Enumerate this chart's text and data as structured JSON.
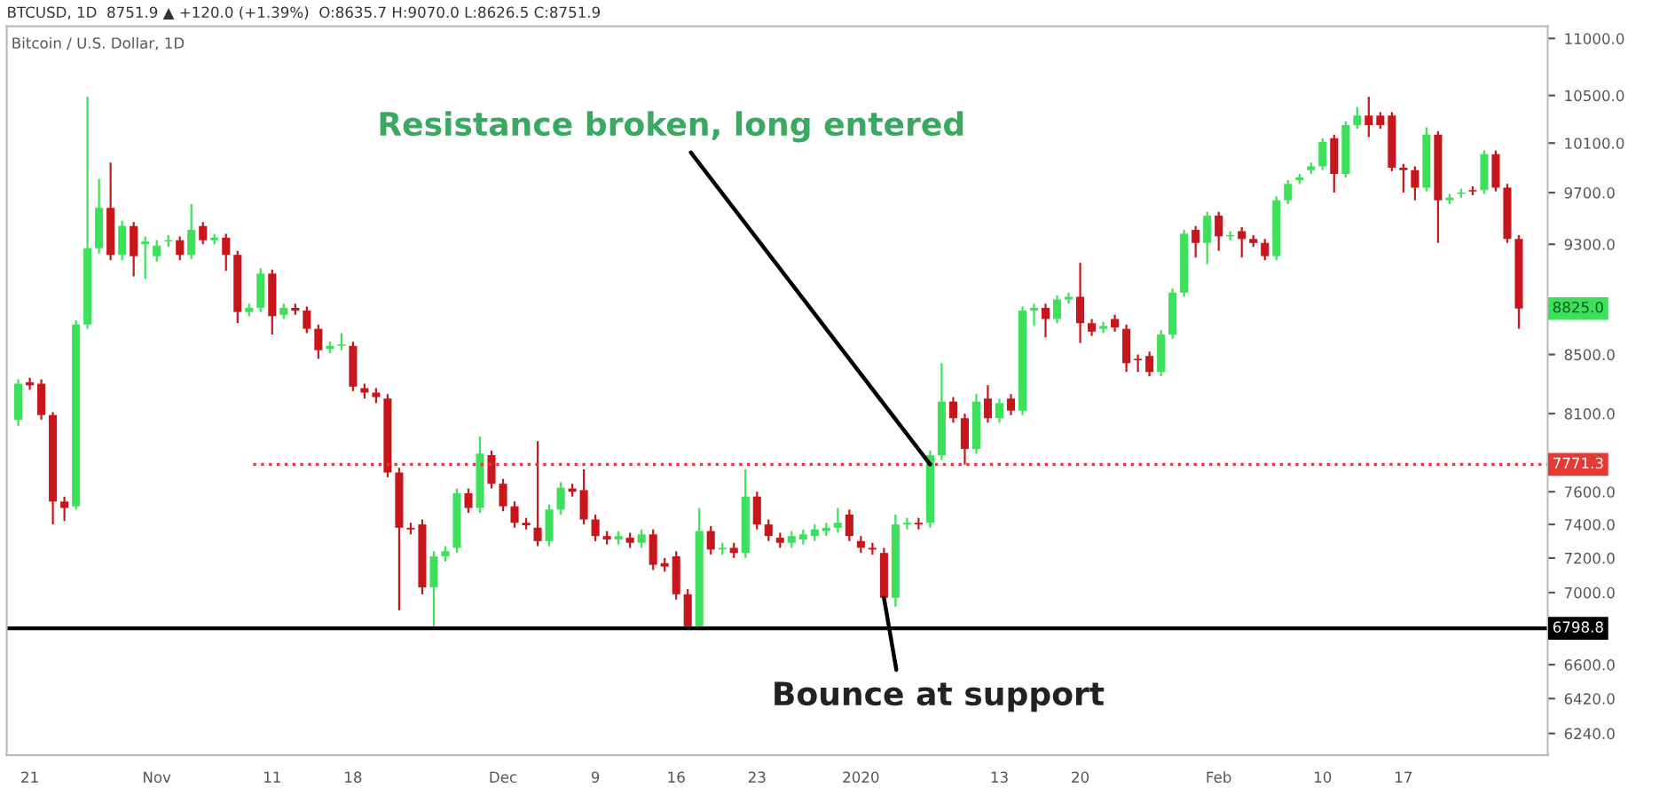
{
  "chart_data": {
    "type": "candlestick",
    "title": "BTCUSD, 1D  8751.9 ▲ +120.0 (+1.39%)  O:8635.7 H:9070.0 L:8626.5 C:8751.9",
    "subtitle": "Bitcoin / U.S. Dollar, 1D",
    "x": [
      "2019-10-20",
      "2019-10-21",
      "2019-10-22",
      "2019-10-23",
      "2019-10-24",
      "2019-10-25",
      "2019-10-26",
      "2019-10-27",
      "2019-10-28",
      "2019-10-29",
      "2019-10-30",
      "2019-10-31",
      "2019-11-01",
      "2019-11-02",
      "2019-11-03",
      "2019-11-04",
      "2019-11-05",
      "2019-11-06",
      "2019-11-07",
      "2019-11-08",
      "2019-11-09",
      "2019-11-10",
      "2019-11-11",
      "2019-11-12",
      "2019-11-13",
      "2019-11-14",
      "2019-11-15",
      "2019-11-16",
      "2019-11-17",
      "2019-11-18",
      "2019-11-19",
      "2019-11-20",
      "2019-11-21",
      "2019-11-22",
      "2019-11-23",
      "2019-11-24",
      "2019-11-25",
      "2019-11-26",
      "2019-11-27",
      "2019-11-28",
      "2019-11-29",
      "2019-11-30",
      "2019-12-01",
      "2019-12-02",
      "2019-12-03",
      "2019-12-04",
      "2019-12-05",
      "2019-12-06",
      "2019-12-07",
      "2019-12-08",
      "2019-12-09",
      "2019-12-10",
      "2019-12-11",
      "2019-12-12",
      "2019-12-13",
      "2019-12-14",
      "2019-12-15",
      "2019-12-16",
      "2019-12-17",
      "2019-12-18",
      "2019-12-19",
      "2019-12-20",
      "2019-12-21",
      "2019-12-22",
      "2019-12-23",
      "2019-12-24",
      "2019-12-25",
      "2019-12-26",
      "2019-12-27",
      "2019-12-28",
      "2019-12-29",
      "2019-12-30",
      "2019-12-31",
      "2020-01-01",
      "2020-01-02",
      "2020-01-03",
      "2020-01-04",
      "2020-01-05",
      "2020-01-06",
      "2020-01-07",
      "2020-01-08",
      "2020-01-09",
      "2020-01-10",
      "2020-01-11",
      "2020-01-12",
      "2020-01-13",
      "2020-01-14",
      "2020-01-15",
      "2020-01-16",
      "2020-01-17",
      "2020-01-18",
      "2020-01-19",
      "2020-01-20",
      "2020-01-21",
      "2020-01-22",
      "2020-01-23",
      "2020-01-24",
      "2020-01-25",
      "2020-01-26",
      "2020-01-27",
      "2020-01-28",
      "2020-01-29",
      "2020-01-30",
      "2020-01-31",
      "2020-02-01",
      "2020-02-02",
      "2020-02-03",
      "2020-02-04",
      "2020-02-05",
      "2020-02-06",
      "2020-02-07",
      "2020-02-08",
      "2020-02-09",
      "2020-02-10",
      "2020-02-11",
      "2020-02-12",
      "2020-02-13",
      "2020-02-14",
      "2020-02-15",
      "2020-02-16",
      "2020-02-17",
      "2020-02-18",
      "2020-02-19",
      "2020-02-20",
      "2020-02-21",
      "2020-02-22",
      "2020-02-23",
      "2020-02-24",
      "2020-02-25",
      "2020-02-26",
      "2020-02-27"
    ],
    "ohlc": [
      [
        8060,
        8330,
        8020,
        8300
      ],
      [
        8310,
        8340,
        8260,
        8290
      ],
      [
        8300,
        8330,
        8060,
        8090
      ],
      [
        8090,
        8110,
        7400,
        7540
      ],
      [
        7540,
        7570,
        7420,
        7500
      ],
      [
        7510,
        8740,
        7490,
        8710
      ],
      [
        8710,
        10490,
        8680,
        9270
      ],
      [
        9270,
        9810,
        9230,
        9580
      ],
      [
        9580,
        9940,
        9180,
        9220
      ],
      [
        9220,
        9480,
        9180,
        9440
      ],
      [
        9440,
        9470,
        9060,
        9210
      ],
      [
        9300,
        9360,
        9040,
        9320
      ],
      [
        9210,
        9330,
        9170,
        9290
      ],
      [
        9320,
        9370,
        9280,
        9330
      ],
      [
        9330,
        9360,
        9180,
        9220
      ],
      [
        9220,
        9610,
        9190,
        9410
      ],
      [
        9440,
        9470,
        9300,
        9330
      ],
      [
        9330,
        9380,
        9300,
        9350
      ],
      [
        9350,
        9380,
        9100,
        9220
      ],
      [
        9220,
        9250,
        8720,
        8800
      ],
      [
        8800,
        8860,
        8770,
        8830
      ],
      [
        8830,
        9120,
        8800,
        9080
      ],
      [
        9080,
        9110,
        8640,
        8770
      ],
      [
        8780,
        8860,
        8750,
        8830
      ],
      [
        8830,
        8860,
        8780,
        8810
      ],
      [
        8810,
        8840,
        8650,
        8680
      ],
      [
        8680,
        8710,
        8470,
        8530
      ],
      [
        8540,
        8590,
        8510,
        8560
      ],
      [
        8560,
        8650,
        8530,
        8570
      ],
      [
        8560,
        8590,
        8250,
        8280
      ],
      [
        8270,
        8300,
        8200,
        8240
      ],
      [
        8240,
        8270,
        8170,
        8210
      ],
      [
        8200,
        8230,
        7690,
        7720
      ],
      [
        7720,
        7750,
        6900,
        7380
      ],
      [
        7380,
        7410,
        7340,
        7370
      ],
      [
        7400,
        7430,
        6990,
        7030
      ],
      [
        7030,
        7240,
        6810,
        7210
      ],
      [
        7210,
        7270,
        7180,
        7240
      ],
      [
        7260,
        7620,
        7230,
        7590
      ],
      [
        7590,
        7620,
        7470,
        7500
      ],
      [
        7500,
        7950,
        7470,
        7840
      ],
      [
        7830,
        7860,
        7620,
        7650
      ],
      [
        7650,
        7680,
        7480,
        7510
      ],
      [
        7510,
        7540,
        7380,
        7410
      ],
      [
        7410,
        7440,
        7370,
        7395
      ],
      [
        7380,
        7920,
        7270,
        7300
      ],
      [
        7300,
        7520,
        7270,
        7490
      ],
      [
        7490,
        7660,
        7460,
        7625
      ],
      [
        7620,
        7650,
        7570,
        7600
      ],
      [
        7610,
        7740,
        7400,
        7430
      ],
      [
        7430,
        7460,
        7300,
        7330
      ],
      [
        7330,
        7360,
        7280,
        7310
      ],
      [
        7310,
        7360,
        7280,
        7330
      ],
      [
        7320,
        7350,
        7260,
        7290
      ],
      [
        7290,
        7370,
        7260,
        7340
      ],
      [
        7340,
        7370,
        7130,
        7160
      ],
      [
        7170,
        7200,
        7120,
        7150
      ],
      [
        7210,
        7240,
        6960,
        6990
      ],
      [
        6990,
        7020,
        6790,
        6810
      ],
      [
        6810,
        7500,
        6790,
        7360
      ],
      [
        7360,
        7390,
        7220,
        7250
      ],
      [
        7250,
        7290,
        7220,
        7260
      ],
      [
        7260,
        7290,
        7200,
        7230
      ],
      [
        7230,
        7740,
        7200,
        7570
      ],
      [
        7570,
        7600,
        7370,
        7400
      ],
      [
        7400,
        7430,
        7300,
        7330
      ],
      [
        7320,
        7350,
        7260,
        7290
      ],
      [
        7290,
        7360,
        7260,
        7330
      ],
      [
        7310,
        7370,
        7280,
        7340
      ],
      [
        7330,
        7400,
        7300,
        7370
      ],
      [
        7360,
        7410,
        7330,
        7380
      ],
      [
        7380,
        7500,
        7350,
        7410
      ],
      [
        7460,
        7490,
        7300,
        7330
      ],
      [
        7300,
        7330,
        7230,
        7260
      ],
      [
        7260,
        7290,
        7220,
        7250
      ],
      [
        7230,
        7260,
        6940,
        6970
      ],
      [
        6970,
        7460,
        6920,
        7400
      ],
      [
        7400,
        7440,
        7370,
        7410
      ],
      [
        7410,
        7440,
        7370,
        7400
      ],
      [
        7410,
        7860,
        7380,
        7830
      ],
      [
        7830,
        8440,
        7800,
        8180
      ],
      [
        8180,
        8210,
        8040,
        8070
      ],
      [
        8070,
        8100,
        7770,
        7870
      ],
      [
        7870,
        8230,
        7840,
        8180
      ],
      [
        8200,
        8290,
        8040,
        8070
      ],
      [
        8070,
        8200,
        8040,
        8170
      ],
      [
        8200,
        8230,
        8090,
        8120
      ],
      [
        8120,
        8840,
        8090,
        8810
      ],
      [
        8810,
        8860,
        8700,
        8830
      ],
      [
        8830,
        8860,
        8620,
        8750
      ],
      [
        8750,
        8920,
        8720,
        8890
      ],
      [
        8890,
        8940,
        8860,
        8910
      ],
      [
        8910,
        9160,
        8580,
        8720
      ],
      [
        8720,
        8750,
        8630,
        8660
      ],
      [
        8680,
        8730,
        8650,
        8700
      ],
      [
        8750,
        8780,
        8660,
        8690
      ],
      [
        8680,
        8710,
        8380,
        8440
      ],
      [
        8470,
        8500,
        8380,
        8460
      ],
      [
        8490,
        8520,
        8350,
        8380
      ],
      [
        8380,
        8670,
        8350,
        8640
      ],
      [
        8640,
        8970,
        8610,
        8940
      ],
      [
        8940,
        9410,
        8910,
        9380
      ],
      [
        9410,
        9440,
        9200,
        9310
      ],
      [
        9310,
        9550,
        9150,
        9520
      ],
      [
        9520,
        9550,
        9250,
        9360
      ],
      [
        9360,
        9400,
        9330,
        9370
      ],
      [
        9400,
        9430,
        9200,
        9340
      ],
      [
        9340,
        9370,
        9280,
        9310
      ],
      [
        9310,
        9340,
        9180,
        9210
      ],
      [
        9210,
        9670,
        9180,
        9640
      ],
      [
        9640,
        9800,
        9610,
        9770
      ],
      [
        9800,
        9850,
        9770,
        9820
      ],
      [
        9880,
        9940,
        9850,
        9910
      ],
      [
        9910,
        10140,
        9880,
        10110
      ],
      [
        10140,
        10170,
        9700,
        9850
      ],
      [
        9850,
        10280,
        9820,
        10250
      ],
      [
        10250,
        10400,
        10220,
        10330
      ],
      [
        10330,
        10490,
        10150,
        10250
      ],
      [
        10330,
        10360,
        10220,
        10250
      ],
      [
        10330,
        10360,
        9870,
        9900
      ],
      [
        9900,
        9930,
        9700,
        9880
      ],
      [
        9880,
        9910,
        9640,
        9740
      ],
      [
        9740,
        10230,
        9710,
        10170
      ],
      [
        10170,
        10200,
        9310,
        9640
      ],
      [
        9640,
        9690,
        9610,
        9660
      ],
      [
        9690,
        9730,
        9660,
        9700
      ],
      [
        9720,
        9750,
        9680,
        9710
      ],
      [
        9720,
        10040,
        9690,
        10010
      ],
      [
        10010,
        10040,
        9710,
        9740
      ],
      [
        9740,
        9770,
        9310,
        9340
      ],
      [
        9340,
        9370,
        8680,
        8825.0
      ]
    ],
    "colors": [
      "#3ee05b",
      "#c8161d",
      "#c8161d",
      "#c8161d",
      "#c8161d",
      "#3ee05b",
      "#3ee05b",
      "#3ee05b",
      "#c8161d",
      "#3ee05b",
      "#c8161d",
      "#3ee05b",
      "#3ee05b",
      "#3ee05b",
      "#c8161d",
      "#3ee05b",
      "#c8161d",
      "#3ee05b",
      "#c8161d",
      "#c8161d",
      "#3ee05b",
      "#3ee05b",
      "#c8161d",
      "#3ee05b",
      "#c8161d",
      "#c8161d",
      "#c8161d",
      "#3ee05b",
      "#3ee05b",
      "#c8161d",
      "#c8161d",
      "#c8161d",
      "#c8161d",
      "#c8161d",
      "#c8161d",
      "#c8161d",
      "#3ee05b",
      "#3ee05b",
      "#3ee05b",
      "#c8161d",
      "#3ee05b",
      "#c8161d",
      "#c8161d",
      "#c8161d",
      "#c8161d",
      "#c8161d",
      "#3ee05b",
      "#3ee05b",
      "#c8161d",
      "#c8161d",
      "#c8161d",
      "#c8161d",
      "#3ee05b",
      "#c8161d",
      "#3ee05b",
      "#c8161d",
      "#c8161d",
      "#c8161d",
      "#c8161d",
      "#3ee05b",
      "#c8161d",
      "#3ee05b",
      "#c8161d",
      "#3ee05b",
      "#c8161d",
      "#c8161d",
      "#c8161d",
      "#3ee05b",
      "#3ee05b",
      "#3ee05b",
      "#3ee05b",
      "#3ee05b",
      "#c8161d",
      "#c8161d",
      "#c8161d",
      "#c8161d",
      "#3ee05b",
      "#3ee05b",
      "#c8161d",
      "#3ee05b",
      "#3ee05b",
      "#c8161d",
      "#c8161d",
      "#3ee05b",
      "#c8161d",
      "#3ee05b",
      "#c8161d",
      "#3ee05b",
      "#3ee05b",
      "#c8161d",
      "#3ee05b",
      "#3ee05b",
      "#c8161d",
      "#c8161d",
      "#3ee05b",
      "#c8161d",
      "#c8161d",
      "#c8161d",
      "#c8161d",
      "#3ee05b",
      "#3ee05b",
      "#3ee05b",
      "#c8161d",
      "#3ee05b",
      "#c8161d",
      "#3ee05b",
      "#c8161d",
      "#c8161d",
      "#c8161d",
      "#3ee05b",
      "#3ee05b",
      "#3ee05b",
      "#3ee05b",
      "#3ee05b",
      "#c8161d",
      "#3ee05b",
      "#3ee05b",
      "#c8161d",
      "#c8161d",
      "#c8161d",
      "#c8161d",
      "#c8161d",
      "#3ee05b",
      "#c8161d",
      "#3ee05b",
      "#3ee05b",
      "#c8161d",
      "#3ee05b",
      "#c8161d",
      "#c8161d",
      "#c8161d"
    ],
    "log": "y",
    "xlim": [
      "2019-10-19",
      "2020-02-29T12:00"
    ],
    "xticks": [
      {
        "value": "2019-10-21",
        "label": "21"
      },
      {
        "value": "2019-11-01",
        "label": "Nov"
      },
      {
        "value": "2019-11-11",
        "label": "11"
      },
      {
        "value": "2019-11-18",
        "label": "18"
      },
      {
        "value": "2019-12-01",
        "label": "Dec"
      },
      {
        "value": "2019-12-09",
        "label": "9"
      },
      {
        "value": "2019-12-16",
        "label": "16"
      },
      {
        "value": "2019-12-23",
        "label": "23"
      },
      {
        "value": "2020-01-01",
        "label": "2020"
      },
      {
        "value": "2020-01-13",
        "label": "13"
      },
      {
        "value": "2020-01-20",
        "label": "20"
      },
      {
        "value": "2020-02-01",
        "label": "Feb"
      },
      {
        "value": "2020-02-10",
        "label": "10"
      },
      {
        "value": "2020-02-17",
        "label": "17"
      }
    ],
    "ylim": [
      6130,
      11110
    ],
    "yticks": [
      {
        "value": 11000,
        "label": "11000.0"
      },
      {
        "value": 10500,
        "label": "10500.0"
      },
      {
        "value": 10100,
        "label": "10100.0"
      },
      {
        "value": 9700,
        "label": "9700.0"
      },
      {
        "value": 9300,
        "label": "9300.0"
      },
      {
        "value": 8500,
        "label": "8500.0"
      },
      {
        "value": 8100,
        "label": "8100.0"
      },
      {
        "value": 7600,
        "label": "7600.0"
      },
      {
        "value": 7400,
        "label": "7400.0"
      },
      {
        "value": 7200,
        "label": "7200.0"
      },
      {
        "value": 7000,
        "label": "7000.0"
      },
      {
        "value": 6600,
        "label": "6600.0"
      },
      {
        "value": 6420,
        "label": "6420.0"
      },
      {
        "value": 6240,
        "label": "6240.0"
      }
    ],
    "ref_lines": [
      {
        "axis": "y",
        "value": 7771.3,
        "label": "7771.3",
        "color": "#e53935",
        "line_style": "dotted"
      },
      {
        "axis": "y",
        "value": 6798.8,
        "label": "6798.8",
        "color": "#000000",
        "line_style": "solid"
      }
    ],
    "annotations": [
      {
        "text": "Resistance broken, long entered",
        "x": "2020-01-07",
        "y": 7771.3
      },
      {
        "text": "Bounce at support",
        "x": "2020-01-03",
        "y": 6970
      },
      {
        "text": "8825.0",
        "y": 8825.0
      }
    ]
  }
}
